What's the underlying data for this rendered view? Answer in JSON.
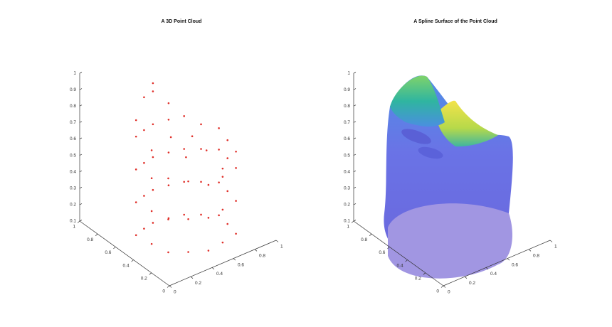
{
  "chart_data": [
    {
      "type": "scatter3d",
      "title": "A 3D Point Cloud",
      "color": "#e0302a",
      "xlim": [
        0,
        1
      ],
      "ylim": [
        0,
        1
      ],
      "zlim": [
        0.1,
        1
      ],
      "xticks": [
        0,
        0.2,
        0.4,
        0.6,
        0.8,
        1
      ],
      "yticks": [
        0,
        0.2,
        0.4,
        0.6,
        0.8,
        1
      ],
      "zticks": [
        0.1,
        0.2,
        0.3,
        0.4,
        0.5,
        0.6,
        0.7,
        0.8,
        0.9,
        1
      ],
      "x": [
        0.15,
        0.15,
        0.15,
        0.15,
        0.15,
        0.25,
        0.25,
        0.25,
        0.25,
        0.25,
        0.35,
        0.35,
        0.35,
        0.35,
        0.35,
        0.35,
        0.48,
        0.48,
        0.48,
        0.48,
        0.48,
        0.6,
        0.6,
        0.6,
        0.6,
        0.7,
        0.7,
        0.7,
        0.7,
        0.8,
        0.8,
        0.8,
        0.8,
        0.78,
        0.78,
        0.78,
        0.78,
        0.75,
        0.75,
        0.75,
        0.75,
        0.6,
        0.6,
        0.6,
        0.6,
        0.45,
        0.45,
        0.45,
        0.32,
        0.32,
        0.32,
        0.2,
        0.2,
        0.2,
        0.17,
        0.17,
        0.17,
        0.17,
        0.45,
        0.55,
        0.35,
        0.6
      ],
      "y": [
        0.55,
        0.55,
        0.55,
        0.55,
        0.55,
        0.58,
        0.58,
        0.58,
        0.58,
        0.58,
        0.6,
        0.6,
        0.6,
        0.6,
        0.6,
        0.6,
        0.58,
        0.58,
        0.58,
        0.58,
        0.58,
        0.55,
        0.55,
        0.55,
        0.55,
        0.48,
        0.48,
        0.48,
        0.48,
        0.4,
        0.4,
        0.4,
        0.4,
        0.28,
        0.28,
        0.28,
        0.28,
        0.15,
        0.15,
        0.15,
        0.15,
        0.12,
        0.12,
        0.12,
        0.12,
        0.1,
        0.1,
        0.1,
        0.17,
        0.17,
        0.17,
        0.25,
        0.25,
        0.25,
        0.4,
        0.4,
        0.4,
        0.4,
        0.35,
        0.4,
        0.4,
        0.3
      ],
      "z": [
        0.15,
        0.35,
        0.55,
        0.75,
        0.85,
        0.15,
        0.35,
        0.55,
        0.75,
        0.95,
        0.15,
        0.35,
        0.55,
        0.75,
        0.95,
        1,
        0.15,
        0.35,
        0.55,
        0.75,
        0.85,
        0.15,
        0.35,
        0.55,
        0.75,
        0.15,
        0.35,
        0.55,
        0.7,
        0.15,
        0.35,
        0.55,
        0.68,
        0.15,
        0.35,
        0.55,
        0.66,
        0.15,
        0.35,
        0.55,
        0.65,
        0.15,
        0.35,
        0.55,
        0.6,
        0.15,
        0.35,
        0.55,
        0.15,
        0.35,
        0.58,
        0.15,
        0.35,
        0.6,
        0.15,
        0.35,
        0.55,
        0.72,
        0.62,
        0.7,
        0.75,
        0.64
      ]
    },
    {
      "type": "surface3d",
      "title": "A Spline Surface of the Point Cloud",
      "xlim": [
        0,
        1
      ],
      "ylim": [
        0,
        1
      ],
      "zlim": [
        0.1,
        1
      ],
      "xticks": [
        0,
        0.2,
        0.4,
        0.6,
        0.8,
        1
      ],
      "yticks": [
        0,
        0.2,
        0.4,
        0.6,
        0.8,
        1
      ],
      "zticks": [
        0.1,
        0.2,
        0.3,
        0.4,
        0.5,
        0.6,
        0.7,
        0.8,
        0.9,
        1
      ]
    }
  ]
}
